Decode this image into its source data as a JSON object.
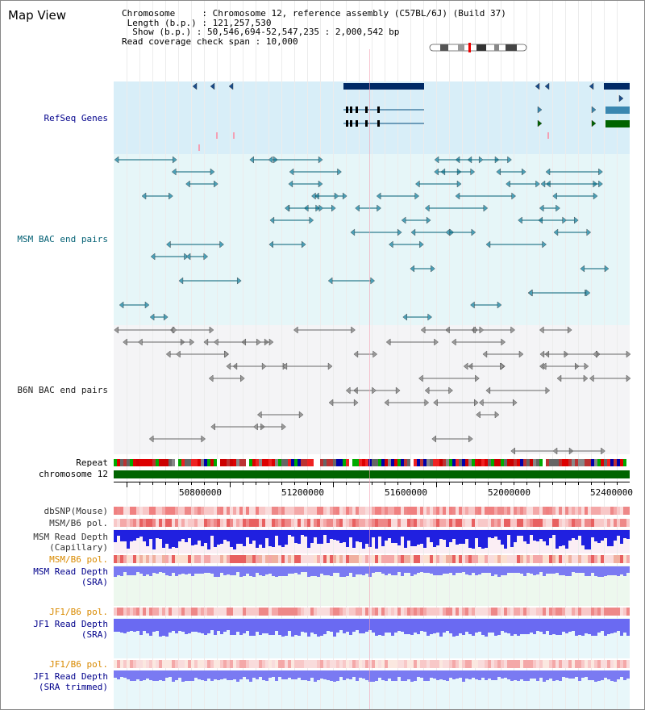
{
  "header": {
    "title": "Map View",
    "chromosome_key": "Chromosome",
    "chromosome_val": "Chromosome 12, reference assembly (C57BL/6J) (Build 37)",
    "length_key": "Length (b.p.)",
    "length_val": "121,257,530",
    "show_key": "Show (b.p.)",
    "show_val": "50,546,694-52,547,235 : 2,000,542 bp",
    "read_key": "Read coverage check span",
    "read_val": "10,000"
  },
  "tracks": {
    "refseq": "RefSeq Genes",
    "msm_bac": "MSM BAC end pairs",
    "b6n_bac": "B6N BAC end pairs",
    "repeat": "Repeat",
    "chromosome": "chromosome 12",
    "dbsnp": "dbSNP(Mouse)",
    "msm_b6_pol": "MSM/B6 pol.",
    "msm_read_cap_1": "MSM Read Depth",
    "msm_read_cap_2": "(Capillary)",
    "msm_b6_pol2": "MSM/B6 pol.",
    "msm_read_sra_1": "MSM Read Depth",
    "msm_read_sra_2": "(SRA)",
    "jf1_b6_pol": "JF1/B6 pol.",
    "jf1_read_sra_1": "JF1 Read Depth",
    "jf1_read_sra_2": "(SRA)",
    "jf1_b6_pol2": "JF1/B6 pol.",
    "jf1_read_trim_1": "JF1 Read Depth",
    "jf1_read_trim_2": "(SRA trimmed)"
  },
  "axis": {
    "ticks": [
      "50800000",
      "51200000",
      "51600000",
      "52000000",
      "52400000"
    ]
  },
  "colors": {
    "refseq_bg": "#d8eef8",
    "msm_bg": "#e6f6f8",
    "b6n_bg": "#f4f4f6",
    "refseq_label": "#00008b",
    "msm_label": "#005f73",
    "b6n_label": "#222222",
    "pol_label_orange": "#d98a00",
    "read_label_blue": "#00008b",
    "chrom_green": "#006400",
    "depth_blue": "#2020e0",
    "depth_light": "#7a7af2"
  }
}
